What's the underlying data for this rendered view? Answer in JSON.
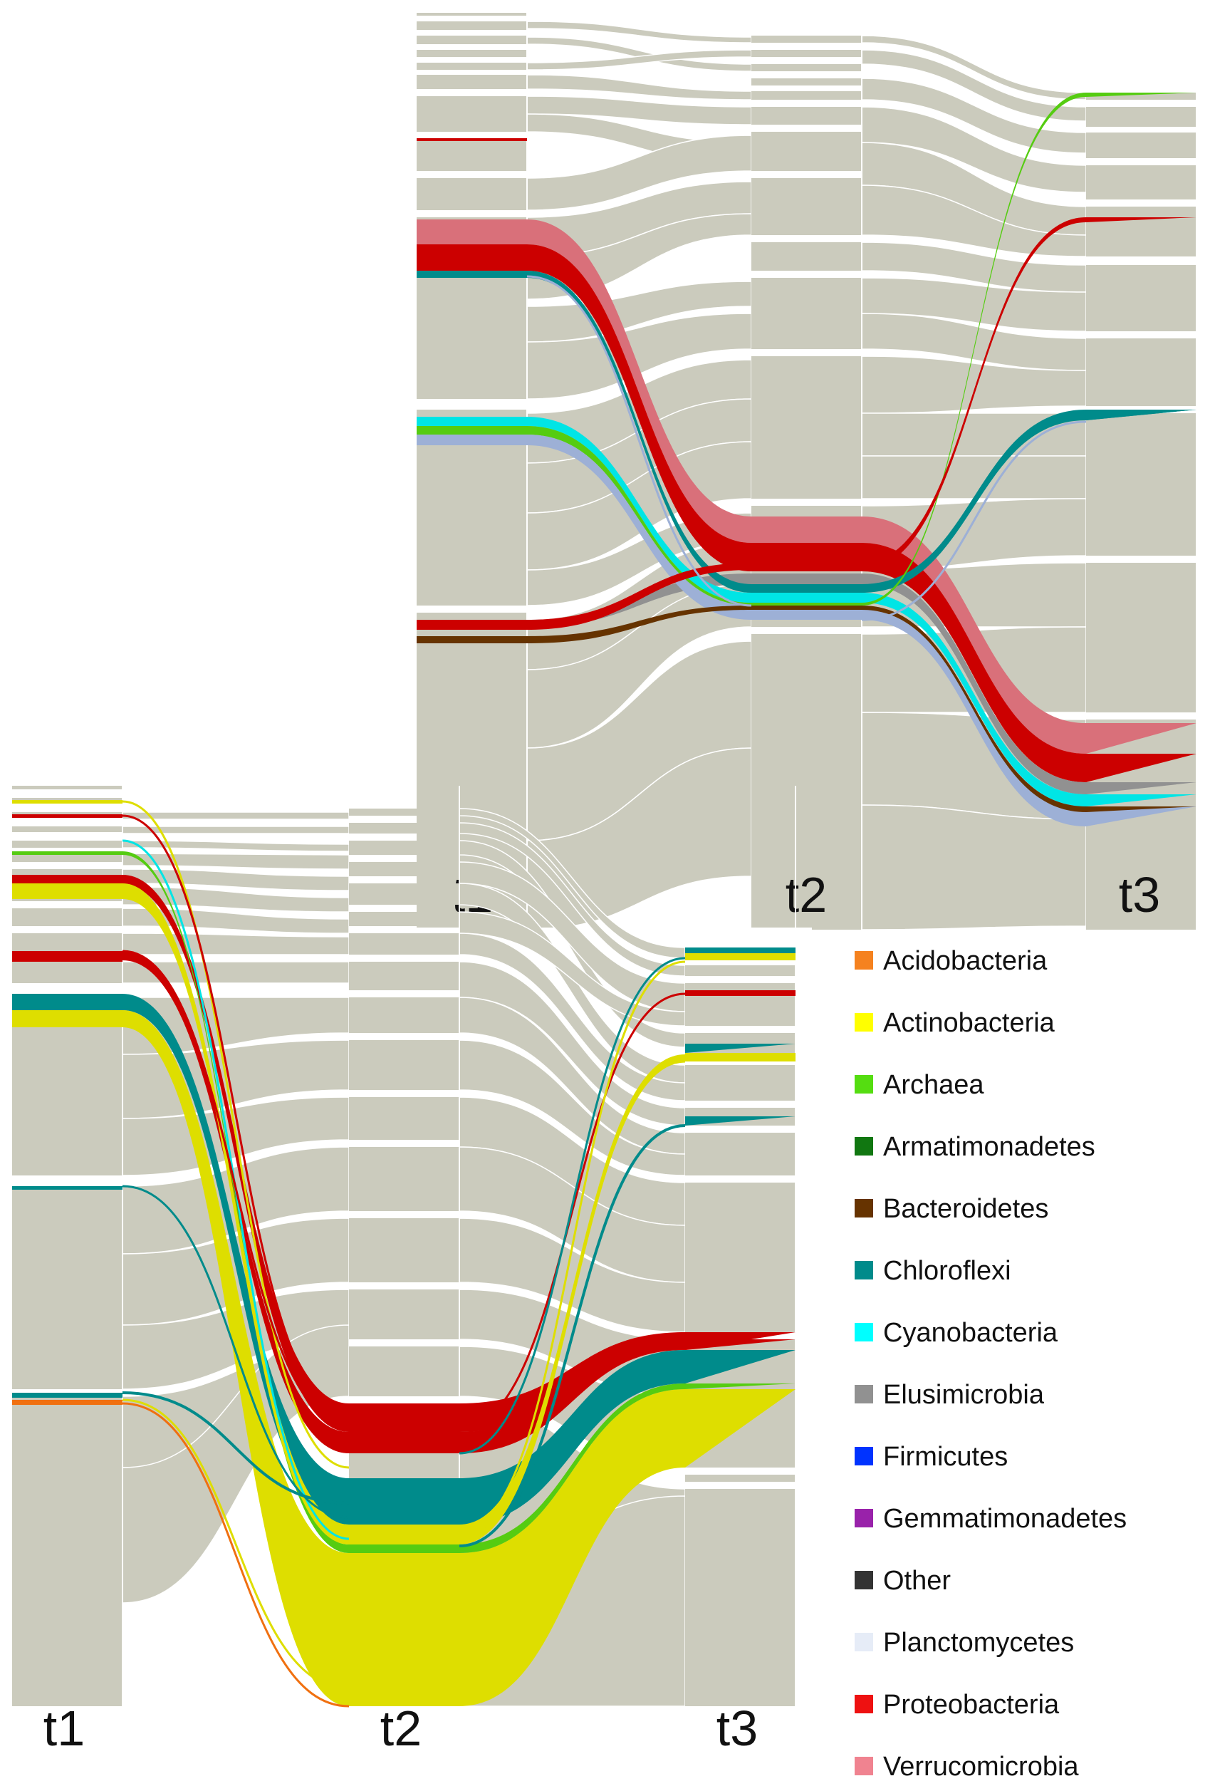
{
  "panels": [
    {
      "id": "top-right",
      "timepoints": [
        "t1",
        "t2",
        "t3"
      ],
      "highlighted_taxa": [
        "Verrucomicrobia",
        "Proteobacteria",
        "Chloroflexi",
        "Cyanobacteria",
        "Archaea",
        "Planctomycetes",
        "Elusimicrobia",
        "Bacteroidetes"
      ]
    },
    {
      "id": "bottom-left",
      "timepoints": [
        "t1",
        "t2",
        "t3"
      ],
      "highlighted_taxa": [
        "Proteobacteria",
        "Chloroflexi",
        "Actinobacteria",
        "Archaea",
        "Cyanobacteria",
        "Acidobacteria"
      ]
    }
  ],
  "legend": [
    {
      "label": "Acidobacteria",
      "color": "#f5821f"
    },
    {
      "label": "Actinobacteria",
      "color": "#ffff00"
    },
    {
      "label": "Archaea",
      "color": "#55dd11"
    },
    {
      "label": "Armatimonadetes",
      "color": "#117711"
    },
    {
      "label": "Bacteroidetes",
      "color": "#663300"
    },
    {
      "label": "Chloroflexi",
      "color": "#008b8b"
    },
    {
      "label": "Cyanobacteria",
      "color": "#00ffff"
    },
    {
      "label": "Elusimicrobia",
      "color": "#919191"
    },
    {
      "label": "Firmicutes",
      "color": "#0033ff"
    },
    {
      "label": "Gemmatimonadetes",
      "color": "#9922aa"
    },
    {
      "label": "Other",
      "color": "#333333"
    },
    {
      "label": "Planctomycetes",
      "color": "#e6ecf7"
    },
    {
      "label": "Proteobacteria",
      "color": "#ee1111"
    },
    {
      "label": "Verrucomicrobia",
      "color": "#f08390"
    }
  ],
  "colors": {
    "background_flow": "#cbcbbd",
    "node_separator": "#ffffff",
    "proteobacteria_flow": "#cc0000",
    "verrucomicrobia_flow": "#d9707a",
    "chloroflexi_flow": "#008b8b",
    "actinobacteria_flow": "#dede00",
    "cyanobacteria_flow": "#00e5e5",
    "archaea_flow": "#55cc11",
    "planctomycetes_flow": "#9db0d6",
    "elusimicrobia_flow": "#919191",
    "bacteroidetes_flow": "#663300",
    "acidobacteria_flow": "#f07010"
  }
}
